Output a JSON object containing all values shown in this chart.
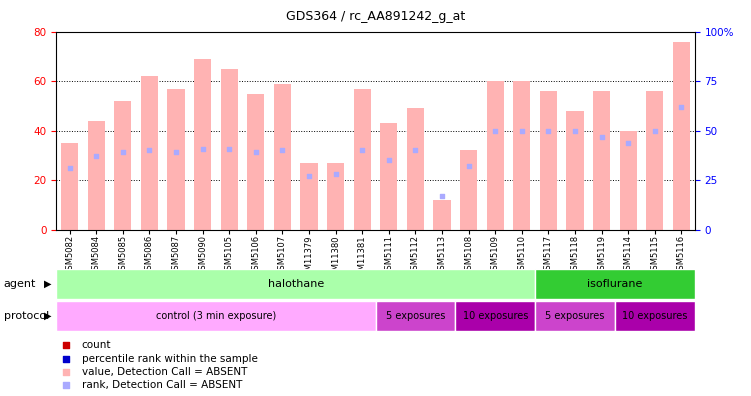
{
  "title": "GDS364 / rc_AA891242_g_at",
  "samples": [
    "GSM5082",
    "GSM5084",
    "GSM5085",
    "GSM5086",
    "GSM5087",
    "GSM5090",
    "GSM5105",
    "GSM5106",
    "GSM5107",
    "GSM11379",
    "GSM11380",
    "GSM11381",
    "GSM5111",
    "GSM5112",
    "GSM5113",
    "GSM5108",
    "GSM5109",
    "GSM5110",
    "GSM5117",
    "GSM5118",
    "GSM5119",
    "GSM5114",
    "GSM5115",
    "GSM5116"
  ],
  "bar_values": [
    35,
    44,
    52,
    62,
    57,
    69,
    65,
    55,
    59,
    27,
    27,
    57,
    43,
    49,
    12,
    32,
    60,
    60,
    56,
    48,
    56,
    40,
    56,
    76
  ],
  "rank_values": [
    31,
    37,
    39,
    40,
    39,
    41,
    41,
    39,
    40,
    27,
    28,
    40,
    35,
    40,
    17,
    32,
    50,
    50,
    50,
    50,
    47,
    44,
    50,
    62
  ],
  "bar_color_absent": "#ffb3b3",
  "rank_color_absent": "#aaaaff",
  "ylim_left": [
    0,
    80
  ],
  "ylim_right": [
    0,
    100
  ],
  "yticks_left": [
    0,
    20,
    40,
    60,
    80
  ],
  "yticks_right": [
    0,
    25,
    50,
    75,
    100
  ],
  "ytick_labels_right": [
    "0",
    "25",
    "50",
    "75",
    "100%"
  ],
  "agent_row": [
    {
      "label": "halothane",
      "start": 0,
      "end": 18,
      "color": "#aaffaa"
    },
    {
      "label": "isoflurane",
      "start": 18,
      "end": 24,
      "color": "#33cc33"
    }
  ],
  "protocol_row": [
    {
      "label": "control (3 min exposure)",
      "start": 0,
      "end": 12,
      "color": "#ffaaff"
    },
    {
      "label": "5 exposures",
      "start": 12,
      "end": 15,
      "color": "#cc44cc"
    },
    {
      "label": "10 exposures",
      "start": 15,
      "end": 18,
      "color": "#aa00aa"
    },
    {
      "label": "5 exposures",
      "start": 18,
      "end": 21,
      "color": "#cc44cc"
    },
    {
      "label": "10 exposures",
      "start": 21,
      "end": 24,
      "color": "#aa00aa"
    }
  ],
  "legend_items": [
    {
      "label": "count",
      "color": "#cc0000"
    },
    {
      "label": "percentile rank within the sample",
      "color": "#0000cc"
    },
    {
      "label": "value, Detection Call = ABSENT",
      "color": "#ffb3b3"
    },
    {
      "label": "rank, Detection Call = ABSENT",
      "color": "#aaaaff"
    }
  ]
}
